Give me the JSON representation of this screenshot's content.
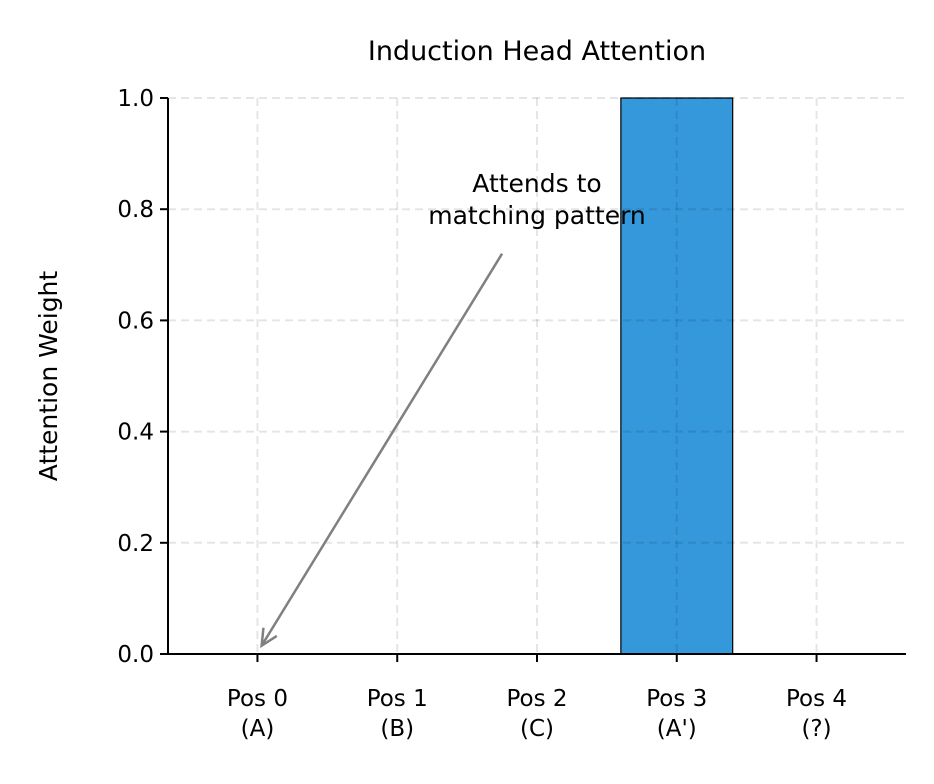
{
  "chart_data": {
    "type": "bar",
    "title": "Induction Head Attention",
    "xlabel": "",
    "ylabel": "Attention Weight",
    "categories": [
      [
        "Pos 0",
        "(A)"
      ],
      [
        "Pos 1",
        "(B)"
      ],
      [
        "Pos 2",
        "(C)"
      ],
      [
        "Pos 3",
        "(A')"
      ],
      [
        "Pos 4",
        "(?)"
      ]
    ],
    "values": [
      0,
      0,
      0,
      1.0,
      0
    ],
    "ylim": [
      0,
      1.0
    ],
    "xlim": [
      -0.64,
      4.64
    ],
    "bar_width": 0.8,
    "yticks": [
      "0.0",
      "0.2",
      "0.4",
      "0.6",
      "0.8",
      "1.0"
    ],
    "grid": true,
    "bar_color": "#3498db",
    "annotation": {
      "lines": [
        "Attends to",
        "matching pattern"
      ],
      "text_at": [
        2.0,
        0.78
      ],
      "arrow_from": [
        1.75,
        0.72
      ],
      "arrow_to": [
        0.03,
        0.015
      ],
      "color": "#808080"
    }
  }
}
